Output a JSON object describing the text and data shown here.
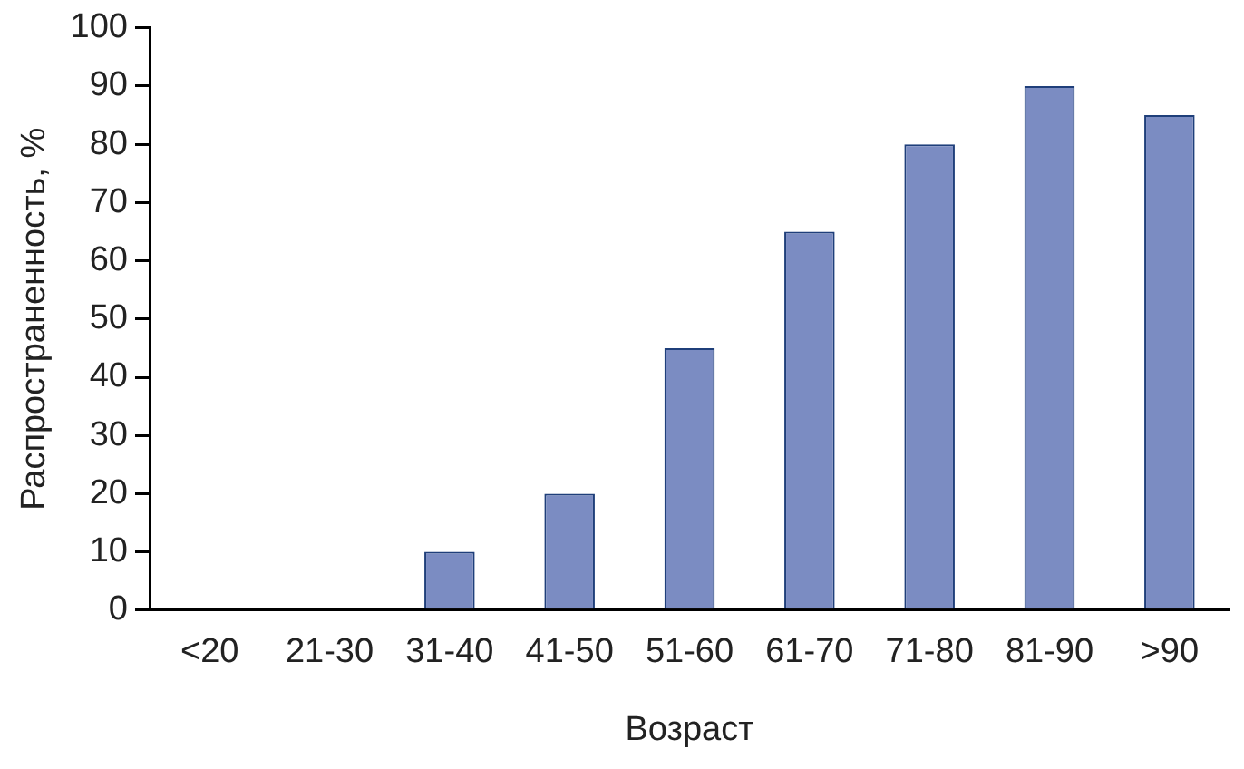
{
  "chart_data": {
    "type": "bar",
    "categories": [
      "<20",
      "21-30",
      "31-40",
      "41-50",
      "51-60",
      "61-70",
      "71-80",
      "81-90",
      ">90"
    ],
    "values": [
      0,
      0,
      10,
      20,
      45,
      65,
      80,
      90,
      85
    ],
    "color": "#7b8cc2",
    "xlabel": "Возраст",
    "ylabel": "Распространенность, %",
    "ylim": [
      0,
      100
    ],
    "yticks": [
      0,
      10,
      20,
      30,
      40,
      50,
      60,
      70,
      80,
      90,
      100
    ],
    "grid": false,
    "legend": false
  }
}
